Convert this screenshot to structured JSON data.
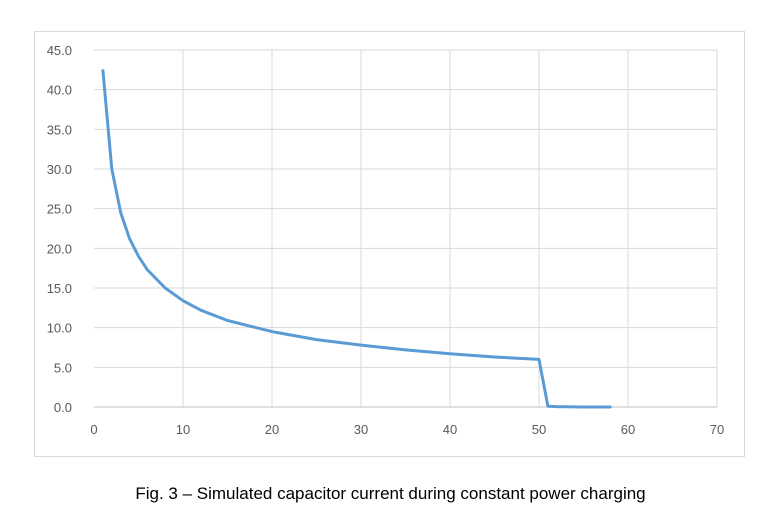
{
  "caption": "Fig. 3 – Simulated capacitor current during constant power charging",
  "chart_data": {
    "type": "line",
    "title": "",
    "xlabel": "",
    "ylabel": "",
    "xlim": [
      0,
      70
    ],
    "ylim": [
      0,
      45
    ],
    "x_ticks": [
      0,
      10,
      20,
      30,
      40,
      50,
      60,
      70
    ],
    "x_tick_labels": [
      "0",
      "10",
      "20",
      "30",
      "40",
      "50",
      "60",
      "70"
    ],
    "y_ticks": [
      0,
      5,
      10,
      15,
      20,
      25,
      30,
      35,
      40,
      45
    ],
    "y_tick_labels": [
      "0.0",
      "5.0",
      "10.0",
      "15.0",
      "20.0",
      "25.0",
      "30.0",
      "35.0",
      "40.0",
      "45.0"
    ],
    "grid": true,
    "legend": "none",
    "series": [
      {
        "color": "#5b9bd5",
        "x": [
          1,
          2,
          3,
          4,
          5,
          6,
          8,
          10,
          12,
          15,
          20,
          25,
          30,
          35,
          40,
          45,
          50,
          51,
          52,
          55,
          58
        ],
        "y": [
          42.4,
          30.0,
          24.5,
          21.2,
          19.0,
          17.3,
          15.0,
          13.4,
          12.2,
          10.9,
          9.5,
          8.5,
          7.8,
          7.2,
          6.7,
          6.3,
          6.0,
          0.1,
          0.05,
          0.0,
          0.0
        ]
      }
    ]
  }
}
